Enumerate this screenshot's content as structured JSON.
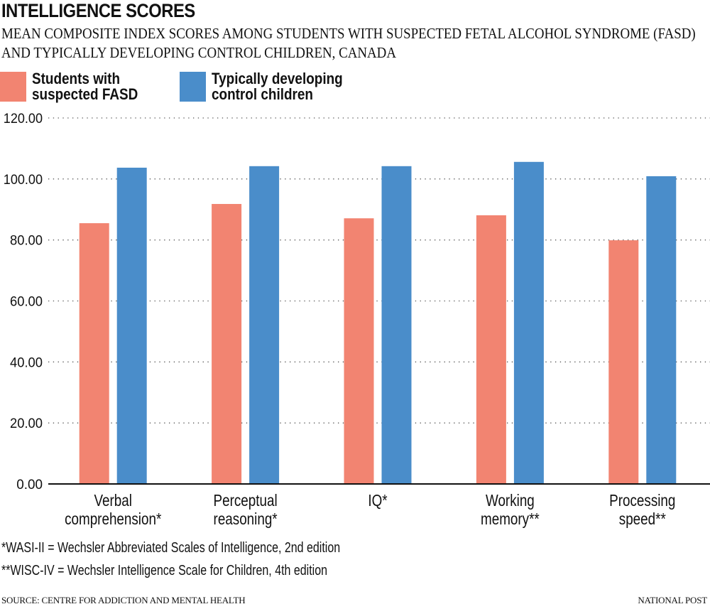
{
  "header": {
    "title": "INTELLIGENCE SCORES",
    "subtitle": "MEAN COMPOSITE INDEX SCORES AMONG STUDENTS WITH SUSPECTED FETAL ALCOHOL SYNDROME (FASD) AND TYPICALLY DEVELOPING CONTROL CHILDREN, CANADA"
  },
  "legend": [
    {
      "line1": "Students with",
      "line2": "suspected FASD",
      "color": "#f28471"
    },
    {
      "line1": "Typically developing",
      "line2": "control children",
      "color": "#4a8dca"
    }
  ],
  "chart_data": {
    "type": "bar",
    "title": "INTELLIGENCE SCORES",
    "subtitle": "MEAN COMPOSITE INDEX SCORES AMONG STUDENTS WITH SUSPECTED FETAL ALCOHOL SYNDROME (FASD) AND TYPICALLY DEVELOPING CONTROL CHILDREN, CANADA",
    "categories": [
      [
        "Verbal",
        "comprehension*"
      ],
      [
        "Perceptual",
        "reasoning*"
      ],
      [
        "IQ*"
      ],
      [
        "Working",
        "memory**"
      ],
      [
        "Processing",
        "speed**"
      ]
    ],
    "series": [
      {
        "name": "Students with suspected FASD",
        "color": "#f28471",
        "values": [
          85.5,
          91.8,
          87.1,
          88.1,
          79.9
        ]
      },
      {
        "name": "Typically developing control children",
        "color": "#4a8dca",
        "values": [
          103.7,
          104.2,
          104.2,
          105.6,
          100.9
        ]
      }
    ],
    "xlabel": "",
    "ylabel": "",
    "ylim": [
      0,
      120
    ],
    "yticks": [
      0,
      20,
      40,
      60,
      80,
      100,
      120
    ],
    "ytick_labels": [
      "0.00",
      "20.00",
      "40.00",
      "60.00",
      "80.00",
      "100.00",
      "120.00"
    ],
    "grid": true,
    "legend_position": "top-left"
  },
  "footnotes": [
    "*WASI-II = Wechsler Abbreviated Scales of Intelligence, 2nd edition",
    "**WISC-IV = Wechsler Intelligence Scale for Children, 4th edition"
  ],
  "footer": {
    "source": "SOURCE: CENTRE FOR ADDICTION AND MENTAL HEALTH",
    "credit": "NATIONAL POST"
  }
}
